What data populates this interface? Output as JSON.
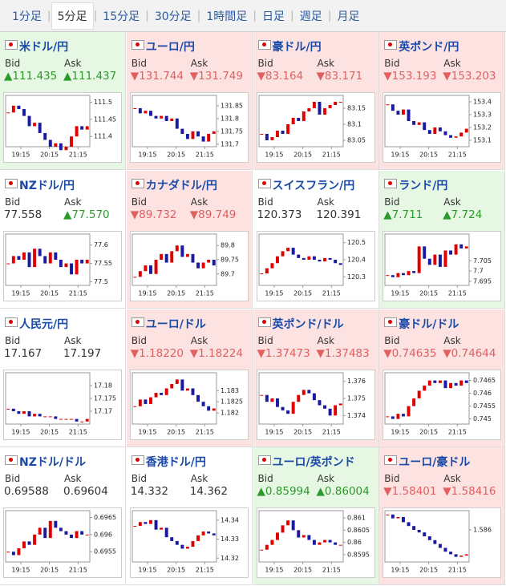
{
  "tabs": [
    "1分足",
    "5分足",
    "15分足",
    "30分足",
    "1時間足",
    "日足",
    "週足",
    "月足"
  ],
  "selected_tab": 1,
  "labels": {
    "bid": "Bid",
    "ask": "Ask"
  },
  "xticks": [
    "19:15",
    "20:15",
    "21:15"
  ],
  "tiles": [
    {
      "name": "米ドル/円",
      "bid": "111.435",
      "ask": "111.437",
      "bid_dir": "up",
      "ask_dir": "up",
      "bg": "up",
      "chart": {
        "type": "candlestick",
        "ylim": [
          111.37,
          111.52
        ],
        "yticks": [
          111.5,
          111.45,
          111.4
        ],
        "values": [
          111.47,
          111.49,
          111.48,
          111.46,
          111.43,
          111.44,
          111.41,
          111.39,
          111.37,
          111.38,
          111.36,
          111.37,
          111.4,
          111.43,
          111.42,
          111.43
        ]
      }
    },
    {
      "name": "ユーロ/円",
      "bid": "131.744",
      "ask": "131.749",
      "bid_dir": "down",
      "ask_dir": "down",
      "bg": "down",
      "chart": {
        "type": "candlestick",
        "ylim": [
          131.69,
          131.89
        ],
        "yticks": [
          131.85,
          131.8,
          131.75,
          131.7
        ],
        "values": [
          131.84,
          131.82,
          131.83,
          131.81,
          131.8,
          131.81,
          131.79,
          131.8,
          131.76,
          131.74,
          131.72,
          131.75,
          131.73,
          131.71,
          131.74,
          131.75
        ]
      }
    },
    {
      "name": "豪ドル/円",
      "bid": "83.164",
      "ask": "83.171",
      "bid_dir": "down",
      "ask_dir": "down",
      "bg": "down",
      "chart": {
        "type": "candlestick",
        "ylim": [
          83.03,
          83.19
        ],
        "yticks": [
          83.15,
          83.1,
          83.05
        ],
        "values": [
          83.07,
          83.05,
          83.06,
          83.08,
          83.07,
          83.1,
          83.12,
          83.11,
          83.14,
          83.15,
          83.17,
          83.13,
          83.15,
          83.16,
          83.17,
          83.17
        ]
      }
    },
    {
      "name": "英ポンド/円",
      "bid": "153.193",
      "ask": "153.203",
      "bid_dir": "down",
      "ask_dir": "down",
      "bg": "down",
      "chart": {
        "type": "candlestick",
        "ylim": [
          153.05,
          153.45
        ],
        "yticks": [
          153.4,
          153.3,
          153.2,
          153.1
        ],
        "values": [
          153.38,
          153.33,
          153.3,
          153.34,
          153.25,
          153.22,
          153.24,
          153.18,
          153.15,
          153.2,
          153.17,
          153.14,
          153.12,
          153.13,
          153.16,
          153.19
        ]
      }
    },
    {
      "name": "NZドル/円",
      "bid": "77.558",
      "ask": "77.570",
      "bid_dir": null,
      "ask_dir": "up",
      "bg": null,
      "chart": {
        "type": "candlestick",
        "ylim": [
          77.49,
          77.63
        ],
        "yticks": [
          77.6,
          77.55,
          77.5
        ],
        "values": [
          77.55,
          77.57,
          77.56,
          77.58,
          77.54,
          77.59,
          77.57,
          77.55,
          77.58,
          77.56,
          77.54,
          77.55,
          77.52,
          77.56,
          77.55,
          77.56
        ]
      }
    },
    {
      "name": "カナダドル/円",
      "bid": "89.732",
      "ask": "89.749",
      "bid_dir": "down",
      "ask_dir": "down",
      "bg": "down",
      "chart": {
        "type": "candlestick",
        "ylim": [
          89.66,
          89.84
        ],
        "yticks": [
          89.8,
          89.75,
          89.7
        ],
        "values": [
          89.69,
          89.71,
          89.73,
          89.7,
          89.75,
          89.77,
          89.74,
          89.78,
          89.8,
          89.76,
          89.77,
          89.74,
          89.72,
          89.74,
          89.75,
          89.73
        ]
      }
    },
    {
      "name": "スイスフラン/円",
      "bid": "120.373",
      "ask": "120.391",
      "bid_dir": null,
      "ask_dir": null,
      "bg": null,
      "chart": {
        "type": "candlestick",
        "ylim": [
          120.25,
          120.55
        ],
        "yticks": [
          120.5,
          120.4,
          120.3
        ],
        "values": [
          120.32,
          120.35,
          120.38,
          120.42,
          120.45,
          120.47,
          120.43,
          120.41,
          120.4,
          120.42,
          120.4,
          120.39,
          120.41,
          120.4,
          120.38,
          120.37
        ]
      }
    },
    {
      "name": "ランド/円",
      "bid": "7.711",
      "ask": "7.724",
      "bid_dir": "up",
      "ask_dir": "up",
      "bg": "up",
      "chart": {
        "type": "candlestick",
        "ylim": [
          7.693,
          7.718
        ],
        "yticks": [
          7.705,
          7.7,
          7.695
        ],
        "values": [
          7.698,
          7.697,
          7.699,
          7.698,
          7.7,
          7.699,
          7.712,
          7.706,
          7.703,
          7.708,
          7.702,
          7.71,
          7.708,
          7.713,
          7.711,
          7.712
        ]
      }
    },
    {
      "name": "人民元/円",
      "bid": "17.167",
      "ask": "17.197",
      "bid_dir": null,
      "ask_dir": null,
      "bg": null,
      "chart": {
        "type": "candlestick",
        "ylim": [
          17.165,
          17.185
        ],
        "yticks": [
          17.18,
          17.175,
          17.17
        ],
        "values": [
          17.171,
          17.17,
          17.169,
          17.17,
          17.168,
          17.169,
          17.168,
          17.168,
          17.168,
          17.167,
          17.167,
          17.167,
          17.167,
          17.166,
          17.166,
          17.167
        ]
      }
    },
    {
      "name": "ユーロ/ドル",
      "bid": "1.18220",
      "ask": "1.18224",
      "bid_dir": "down",
      "ask_dir": "down",
      "bg": "down",
      "chart": {
        "type": "candlestick",
        "ylim": [
          1.1815,
          1.1838
        ],
        "yticks": [
          1.183,
          1.1825,
          1.182
        ],
        "values": [
          1.1823,
          1.1826,
          1.1824,
          1.1827,
          1.1829,
          1.1828,
          1.1831,
          1.1833,
          1.1835,
          1.183,
          1.1831,
          1.1828,
          1.1825,
          1.1823,
          1.1821,
          1.1822
        ]
      }
    },
    {
      "name": "英ポンド/ドル",
      "bid": "1.37473",
      "ask": "1.37483",
      "bid_dir": "down",
      "ask_dir": "down",
      "bg": "down",
      "chart": {
        "type": "candlestick",
        "ylim": [
          1.3735,
          1.3765
        ],
        "yticks": [
          1.376,
          1.375,
          1.374
        ],
        "values": [
          1.3752,
          1.3748,
          1.375,
          1.3745,
          1.3743,
          1.3741,
          1.3748,
          1.3752,
          1.3755,
          1.3753,
          1.3749,
          1.3746,
          1.3744,
          1.374,
          1.3746,
          1.3747
        ]
      }
    },
    {
      "name": "豪ドル/ドル",
      "bid": "0.74635",
      "ask": "0.74644",
      "bid_dir": "down",
      "ask_dir": "down",
      "bg": "down",
      "chart": {
        "type": "candlestick",
        "ylim": [
          0.7448,
          0.7468
        ],
        "yticks": [
          0.7465,
          0.746,
          0.7455,
          0.745
        ],
        "values": [
          0.7451,
          0.745,
          0.7452,
          0.7451,
          0.7455,
          0.7458,
          0.7461,
          0.7463,
          0.7465,
          0.7464,
          0.7465,
          0.7462,
          0.7464,
          0.7463,
          0.7465,
          0.7464
        ]
      }
    },
    {
      "name": "NZドル/ドル",
      "bid": "0.69588",
      "ask": "0.69604",
      "bid_dir": null,
      "ask_dir": null,
      "bg": null,
      "chart": {
        "type": "candlestick",
        "ylim": [
          0.6952,
          0.6967
        ],
        "yticks": [
          0.6965,
          0.696,
          0.6955
        ],
        "values": [
          0.6955,
          0.6954,
          0.6956,
          0.6958,
          0.6957,
          0.696,
          0.6962,
          0.6959,
          0.6964,
          0.6962,
          0.6961,
          0.696,
          0.6959,
          0.6961,
          0.696,
          0.696
        ]
      }
    },
    {
      "name": "香港ドル/円",
      "bid": "14.332",
      "ask": "14.362",
      "bid_dir": null,
      "ask_dir": null,
      "bg": null,
      "chart": {
        "type": "candlestick",
        "ylim": [
          14.318,
          14.345
        ],
        "yticks": [
          14.34,
          14.33,
          14.32
        ],
        "values": [
          14.337,
          14.339,
          14.338,
          14.34,
          14.335,
          14.336,
          14.331,
          14.329,
          14.327,
          14.325,
          14.326,
          14.329,
          14.332,
          14.334,
          14.333,
          14.332
        ]
      }
    },
    {
      "name": "ユーロ/英ポンド",
      "bid": "0.85994",
      "ask": "0.86004",
      "bid_dir": "up",
      "ask_dir": "up",
      "bg": "up",
      "chart": {
        "type": "candlestick",
        "ylim": [
          0.8592,
          0.8613
        ],
        "yticks": [
          0.861,
          0.8605,
          0.86,
          0.8595
        ],
        "values": [
          0.8597,
          0.8599,
          0.8601,
          0.8604,
          0.8607,
          0.8609,
          0.8605,
          0.8602,
          0.8603,
          0.8601,
          0.8599,
          0.86,
          0.8601,
          0.86,
          0.8599,
          0.8599
        ]
      }
    },
    {
      "name": "ユーロ/豪ドル",
      "bid": "1.58401",
      "ask": "1.58416",
      "bid_dir": "down",
      "ask_dir": "down",
      "bg": "down",
      "chart": {
        "type": "candlestick",
        "ylim": [
          1.5835,
          1.5875
        ],
        "yticks": [
          1.586
        ],
        "values": [
          1.5872,
          1.5869,
          1.587,
          1.5866,
          1.5863,
          1.586,
          1.5858,
          1.5855,
          1.5852,
          1.5849,
          1.5846,
          1.5843,
          1.5841,
          1.5839,
          1.584,
          1.5841
        ]
      }
    }
  ]
}
